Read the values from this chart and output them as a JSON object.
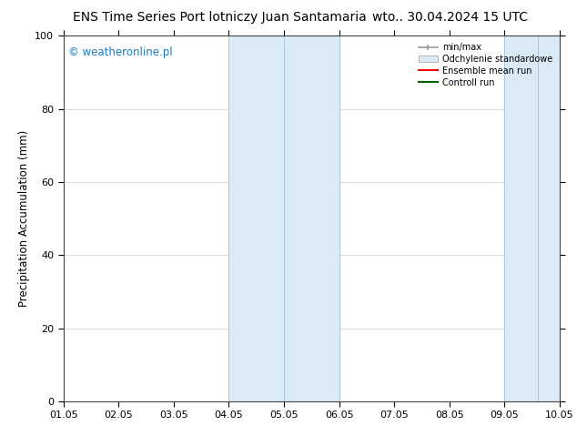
{
  "title_left": "ENS Time Series Port lotniczy Juan Santamaria",
  "title_right": "wto.. 30.04.2024 15 UTC",
  "ylabel": "Precipitation Accumulation (mm)",
  "watermark": "© weatheronline.pl",
  "watermark_color": "#1a7abf",
  "xlim_start": 0,
  "xlim_end": 9,
  "ylim": [
    0,
    100
  ],
  "xtick_positions": [
    0,
    1,
    2,
    3,
    4,
    5,
    6,
    7,
    8,
    9
  ],
  "xtick_labels": [
    "01.05",
    "02.05",
    "03.05",
    "04.05",
    "05.05",
    "06.05",
    "07.05",
    "08.05",
    "09.05",
    "10.05"
  ],
  "ytick_values": [
    0,
    20,
    40,
    60,
    80,
    100
  ],
  "shaded_regions": [
    {
      "xstart": 3.0,
      "xend": 5.0,
      "color": "#daeaf7"
    },
    {
      "xstart": 8.0,
      "xend": 9.1,
      "color": "#daeaf7"
    }
  ],
  "shaded_region_lines": [
    {
      "x": 3.0
    },
    {
      "x": 4.0
    },
    {
      "x": 5.0
    },
    {
      "x": 8.0
    },
    {
      "x": 8.6
    }
  ],
  "legend_items": [
    {
      "label": "min/max",
      "color": "#aaaaaa",
      "type": "errorbar"
    },
    {
      "label": "Odchylenie standardowe",
      "color": "#daeaf7",
      "type": "rect"
    },
    {
      "label": "Ensemble mean run",
      "color": "red",
      "type": "line"
    },
    {
      "label": "Controll run",
      "color": "green",
      "type": "line"
    }
  ],
  "bg_color": "#ffffff",
  "title_fontsize": 10,
  "axis_fontsize": 8.5,
  "tick_fontsize": 8
}
